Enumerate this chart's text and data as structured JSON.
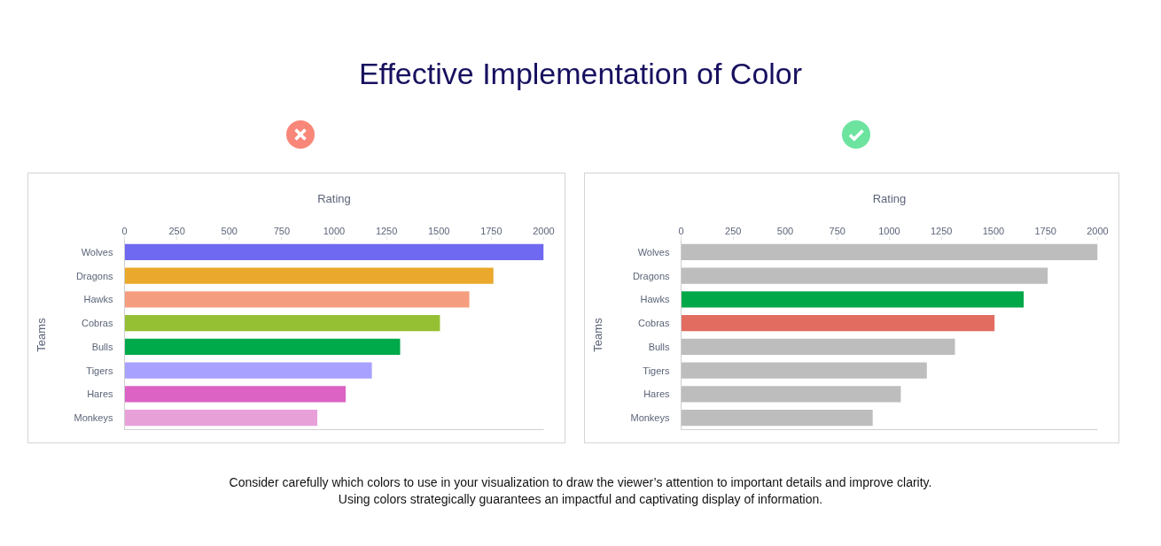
{
  "chart_data": [
    {
      "type": "bar",
      "orientation": "horizontal",
      "title": "Effective Implementation of Color",
      "xlabel": "Rating",
      "ylabel": "Teams",
      "categories": [
        "Wolves",
        "Dragons",
        "Hawks",
        "Cobras",
        "Bulls",
        "Tigers",
        "Hares",
        "Monkeys"
      ],
      "values": [
        2000,
        1760,
        1645,
        1505,
        1315,
        1180,
        1055,
        920
      ],
      "colors": [
        "#6f68f0",
        "#eaa82c",
        "#f59e7f",
        "#95c034",
        "#00a94a",
        "#a8a1ff",
        "#dc62c3",
        "#e8a0d9"
      ],
      "xlim": [
        0,
        2000
      ],
      "xticks": [
        0,
        250,
        500,
        750,
        1000,
        1250,
        1500,
        1750,
        2000
      ]
    },
    {
      "type": "bar",
      "orientation": "horizontal",
      "xlabel": "Rating",
      "ylabel": "Teams",
      "categories": [
        "Wolves",
        "Dragons",
        "Hawks",
        "Cobras",
        "Bulls",
        "Tigers",
        "Hares",
        "Monkeys"
      ],
      "values": [
        2000,
        1760,
        1645,
        1505,
        1315,
        1180,
        1055,
        920
      ],
      "colors": [
        "#bdbdbd",
        "#bdbdbd",
        "#00a84a",
        "#e26c60",
        "#bdbdbd",
        "#bdbdbd",
        "#bdbdbd",
        "#bdbdbd"
      ],
      "xlim": [
        0,
        2000
      ],
      "xticks": [
        0,
        250,
        500,
        750,
        1000,
        1250,
        1500,
        1750,
        2000
      ],
      "annotations": [
        "Consider carefully which colors to use in your visualization to draw the viewer’s attention to important details and improve clarity.",
        "Using colors strategically guarantees an impactful and captivating display of information."
      ]
    }
  ]
}
